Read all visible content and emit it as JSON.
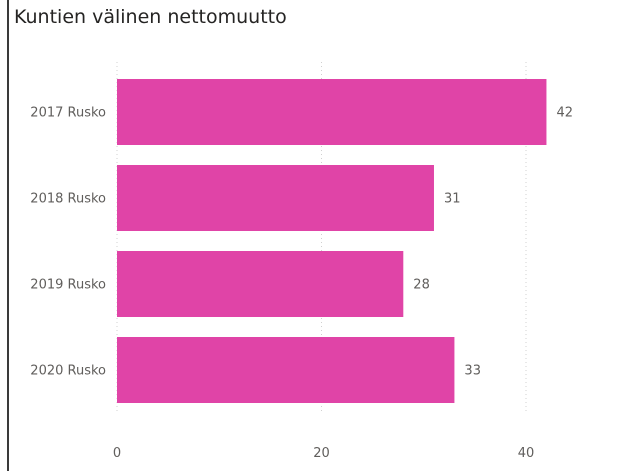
{
  "chart_data": {
    "type": "bar",
    "orientation": "horizontal",
    "title": "Kuntien välinen nettomuutto",
    "categories": [
      "2017 Rusko",
      "2018 Rusko",
      "2019 Rusko",
      "2020 Rusko"
    ],
    "values": [
      42,
      31,
      28,
      33
    ],
    "xlim": [
      0,
      50
    ],
    "xticks": [
      0,
      20,
      40
    ],
    "grid": true,
    "bar_color": "#E044A7"
  }
}
